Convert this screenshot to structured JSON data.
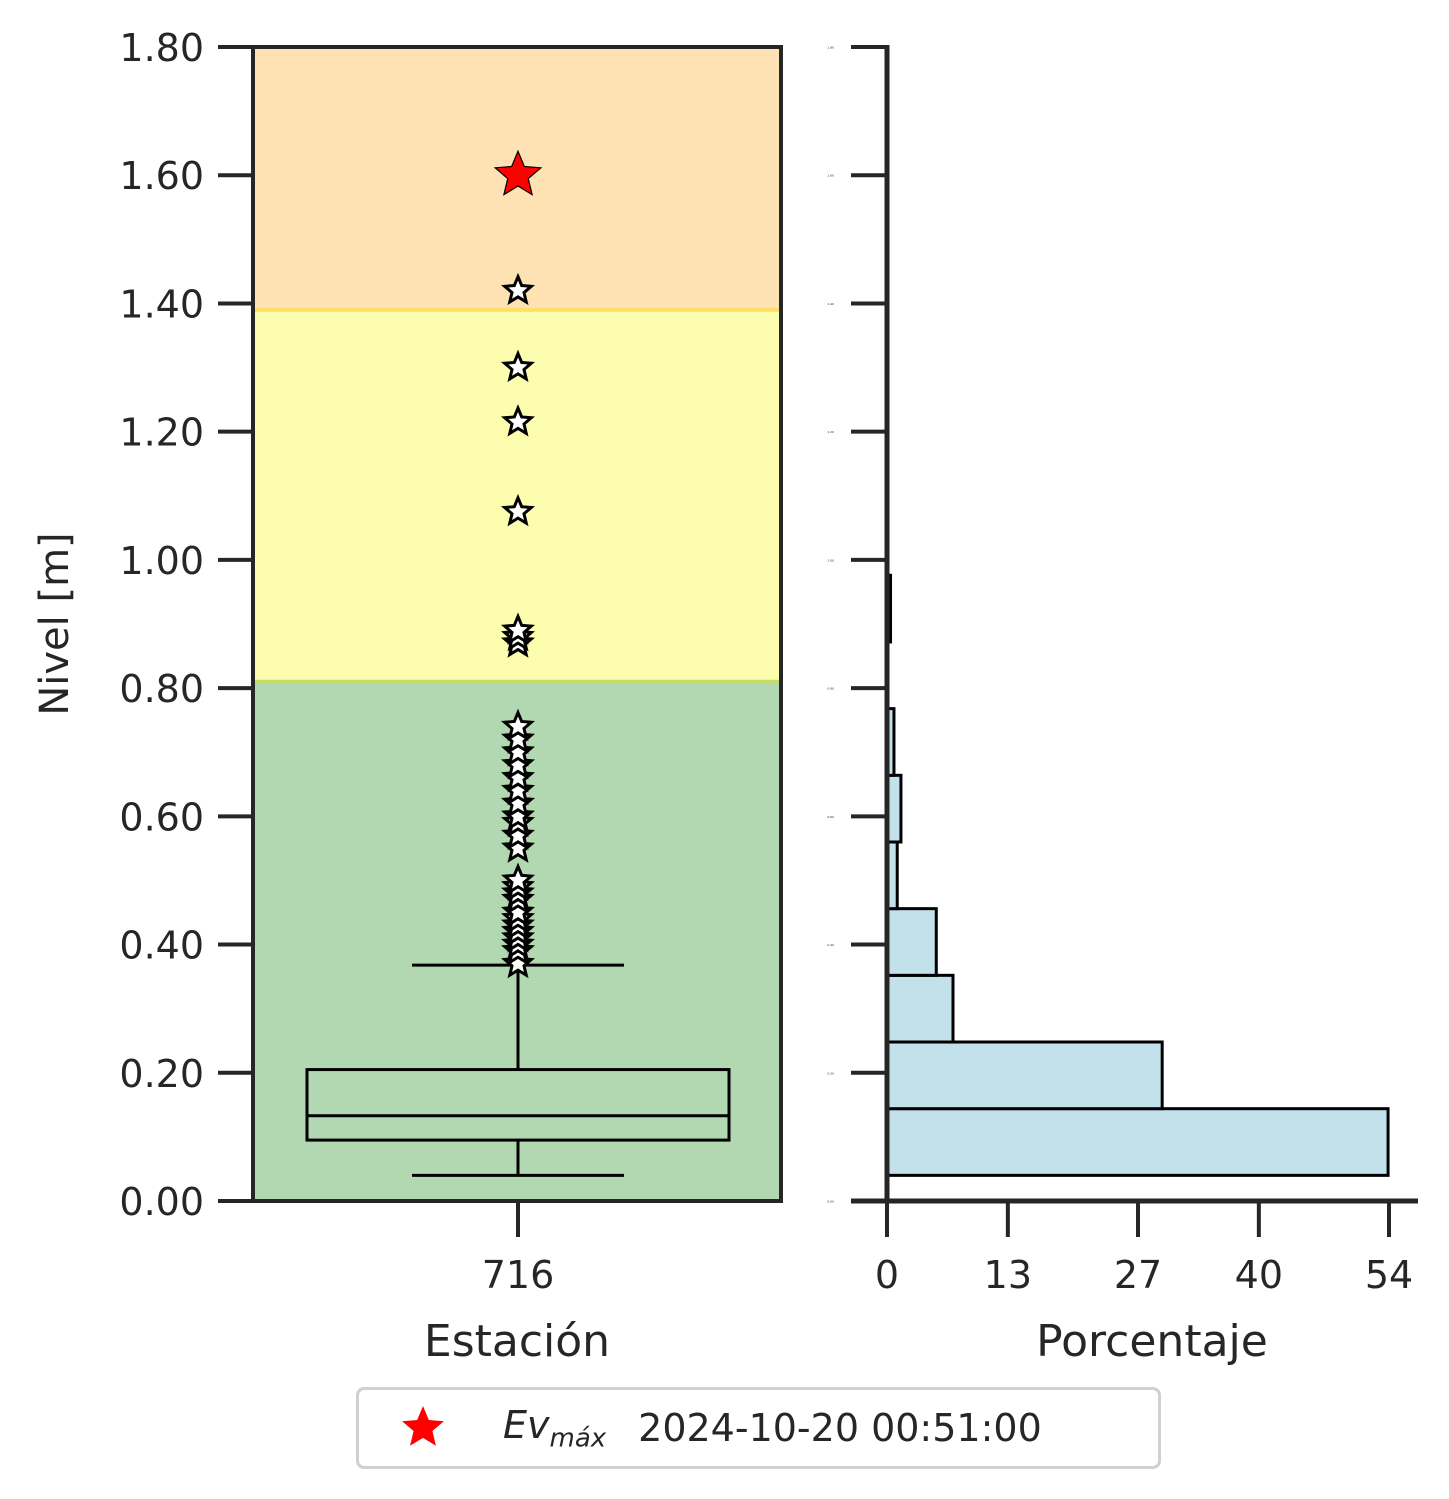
{
  "chart_data": [
    {
      "type": "box",
      "xlabel": "Estación",
      "ylabel": "Nivel [m]",
      "categories": [
        "716"
      ],
      "ylim": [
        0.0,
        1.8
      ],
      "yticks": [
        "0.00",
        "0.20",
        "0.40",
        "0.60",
        "0.80",
        "1.00",
        "1.20",
        "1.40",
        "1.60",
        "1.80"
      ],
      "bands": [
        {
          "from": 0.0,
          "to": 0.81,
          "color": "#b2d8b2"
        },
        {
          "from": 0.81,
          "to": 1.39,
          "color": "#fdfdb0"
        },
        {
          "from": 1.39,
          "to": 1.8,
          "color": "#fee2b3"
        }
      ],
      "box": {
        "whisker_low": 0.04,
        "q1": 0.095,
        "median": 0.133,
        "q3": 0.205,
        "whisker_high": 0.368
      },
      "outliers": [
        0.37,
        0.39,
        0.4,
        0.41,
        0.42,
        0.43,
        0.44,
        0.45,
        0.47,
        0.48,
        0.49,
        0.5,
        0.55,
        0.57,
        0.59,
        0.6,
        0.62,
        0.64,
        0.66,
        0.68,
        0.7,
        0.72,
        0.74,
        0.87,
        0.88,
        0.89,
        1.075,
        1.215,
        1.3,
        1.42
      ],
      "max_event": {
        "value": 1.6,
        "color": "#ff0000"
      }
    },
    {
      "type": "bar",
      "orientation": "horizontal",
      "xlabel": "Porcentaje",
      "xticks": [
        "0",
        "13",
        "27",
        "40",
        "54"
      ],
      "xlim": [
        0,
        54
      ],
      "ylim": [
        0.0,
        1.8
      ],
      "bar_color": "#c2e1eb",
      "bins": [
        {
          "from": 0.04,
          "to": 0.144,
          "value": 53.9
        },
        {
          "from": 0.144,
          "to": 0.248,
          "value": 29.6
        },
        {
          "from": 0.248,
          "to": 0.352,
          "value": 7.1
        },
        {
          "from": 0.352,
          "to": 0.456,
          "value": 5.3
        },
        {
          "from": 0.456,
          "to": 0.56,
          "value": 1.1
        },
        {
          "from": 0.56,
          "to": 0.664,
          "value": 1.5
        },
        {
          "from": 0.664,
          "to": 0.768,
          "value": 0.75
        },
        {
          "from": 0.768,
          "to": 0.872,
          "value": 0.0
        },
        {
          "from": 0.872,
          "to": 0.976,
          "value": 0.38
        }
      ]
    }
  ],
  "legend": {
    "ev_label": "Ev",
    "ev_sub": "máx",
    "date": "2024-10-20 00:51:00",
    "marker_color": "#ff0000"
  }
}
